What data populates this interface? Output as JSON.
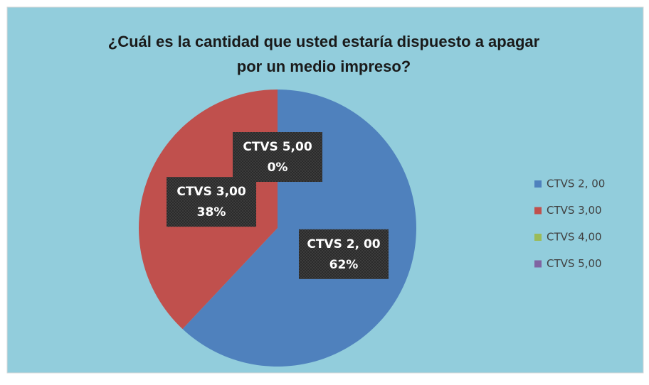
{
  "chart_data": {
    "type": "pie",
    "title": "¿Cuál es la cantidad que usted estaría dispuesto a apagar por un medio impreso?",
    "categories": [
      "CTVS 2, 00",
      "CTVS 3,00",
      "CTVS 4,00",
      "CTVS 5,00"
    ],
    "values": [
      62,
      38,
      0,
      0
    ],
    "value_labels": [
      "62%",
      "38%",
      null,
      "0%"
    ],
    "colors": [
      "#4f81bd",
      "#c0504d",
      "#9bbb59",
      "#8064a2"
    ],
    "legend": "right"
  }
}
